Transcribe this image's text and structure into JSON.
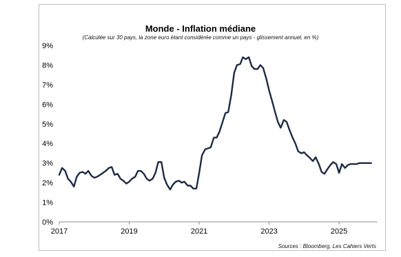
{
  "chart_data": {
    "type": "line",
    "title": "Monde - Inflation médiane",
    "subtitle": "(Calculée sur 30 pays, la zone euro étant considérée comme un pays - glissement annuel, en %)",
    "source": "Sources : Bloomberg, Les Cahiers Verts",
    "xlabel": "",
    "ylabel": "",
    "xlim": [
      2017.0,
      2026.1
    ],
    "ylim": [
      0,
      9
    ],
    "y_ticks": [
      "0%",
      "1%",
      "2%",
      "3%",
      "4%",
      "5%",
      "6%",
      "7%",
      "8%",
      "9%"
    ],
    "x_ticks": [
      "2017",
      "2019",
      "2021",
      "2023",
      "2025"
    ],
    "grid": false,
    "line_color": "#1c2a45",
    "series": [
      {
        "x": [
          2017.0,
          2017.08,
          2017.17,
          2017.25,
          2017.33,
          2017.42,
          2017.5,
          2017.58,
          2017.67,
          2017.75,
          2017.83,
          2017.92,
          2018.0,
          2018.08,
          2018.17,
          2018.25,
          2018.33,
          2018.42,
          2018.5,
          2018.58,
          2018.67,
          2018.75,
          2018.83,
          2018.92,
          2019.0,
          2019.08,
          2019.17,
          2019.25,
          2019.33,
          2019.42,
          2019.5,
          2019.58,
          2019.67,
          2019.75,
          2019.83,
          2019.92,
          2020.0,
          2020.08,
          2020.17,
          2020.25,
          2020.33,
          2020.42,
          2020.5,
          2020.58,
          2020.67,
          2020.75,
          2020.83,
          2020.92,
          2021.0,
          2021.08,
          2021.17,
          2021.25,
          2021.33,
          2021.42,
          2021.5,
          2021.58,
          2021.67,
          2021.75,
          2021.83,
          2021.92,
          2022.0,
          2022.08,
          2022.17,
          2022.25,
          2022.33,
          2022.42,
          2022.5,
          2022.58,
          2022.67,
          2022.75,
          2022.83,
          2022.92,
          2023.0,
          2023.08,
          2023.17,
          2023.25,
          2023.33,
          2023.42,
          2023.5,
          2023.58,
          2023.67,
          2023.75,
          2023.83,
          2023.92,
          2024.0,
          2024.08,
          2024.17,
          2024.25,
          2024.33,
          2024.42,
          2024.5,
          2024.58,
          2024.67,
          2024.75,
          2024.83,
          2024.92,
          2025.0,
          2025.08,
          2025.17,
          2025.25,
          2025.33,
          2025.42,
          2025.5,
          2025.58,
          2025.67,
          2025.75,
          2025.83,
          2025.92
        ],
        "y": [
          2.4,
          2.75,
          2.6,
          2.2,
          2.05,
          1.8,
          2.3,
          2.5,
          2.55,
          2.45,
          2.6,
          2.35,
          2.25,
          2.3,
          2.4,
          2.5,
          2.6,
          2.75,
          2.8,
          2.4,
          2.45,
          2.2,
          2.1,
          1.95,
          2.05,
          2.2,
          2.3,
          2.6,
          2.6,
          2.45,
          2.2,
          2.1,
          2.2,
          2.5,
          3.05,
          3.05,
          2.25,
          1.9,
          1.65,
          1.9,
          2.05,
          2.1,
          2.0,
          2.05,
          1.85,
          1.85,
          1.7,
          1.7,
          2.5,
          3.4,
          3.7,
          3.75,
          3.8,
          4.3,
          4.3,
          4.6,
          5.1,
          5.55,
          5.6,
          6.5,
          7.6,
          8.0,
          8.05,
          8.4,
          8.3,
          8.4,
          7.95,
          7.8,
          7.8,
          8.0,
          7.85,
          7.3,
          6.7,
          6.2,
          5.6,
          5.1,
          4.8,
          5.2,
          5.1,
          4.7,
          4.3,
          4.0,
          3.6,
          3.5,
          3.55,
          3.4,
          3.25,
          3.1,
          3.3,
          2.95,
          2.55,
          2.45,
          2.7,
          2.9,
          3.05,
          2.95,
          2.5,
          2.95,
          2.75,
          2.9,
          2.95,
          2.95,
          2.95,
          3.0,
          3.0,
          3.0,
          3.0,
          3.0
        ]
      }
    ]
  }
}
